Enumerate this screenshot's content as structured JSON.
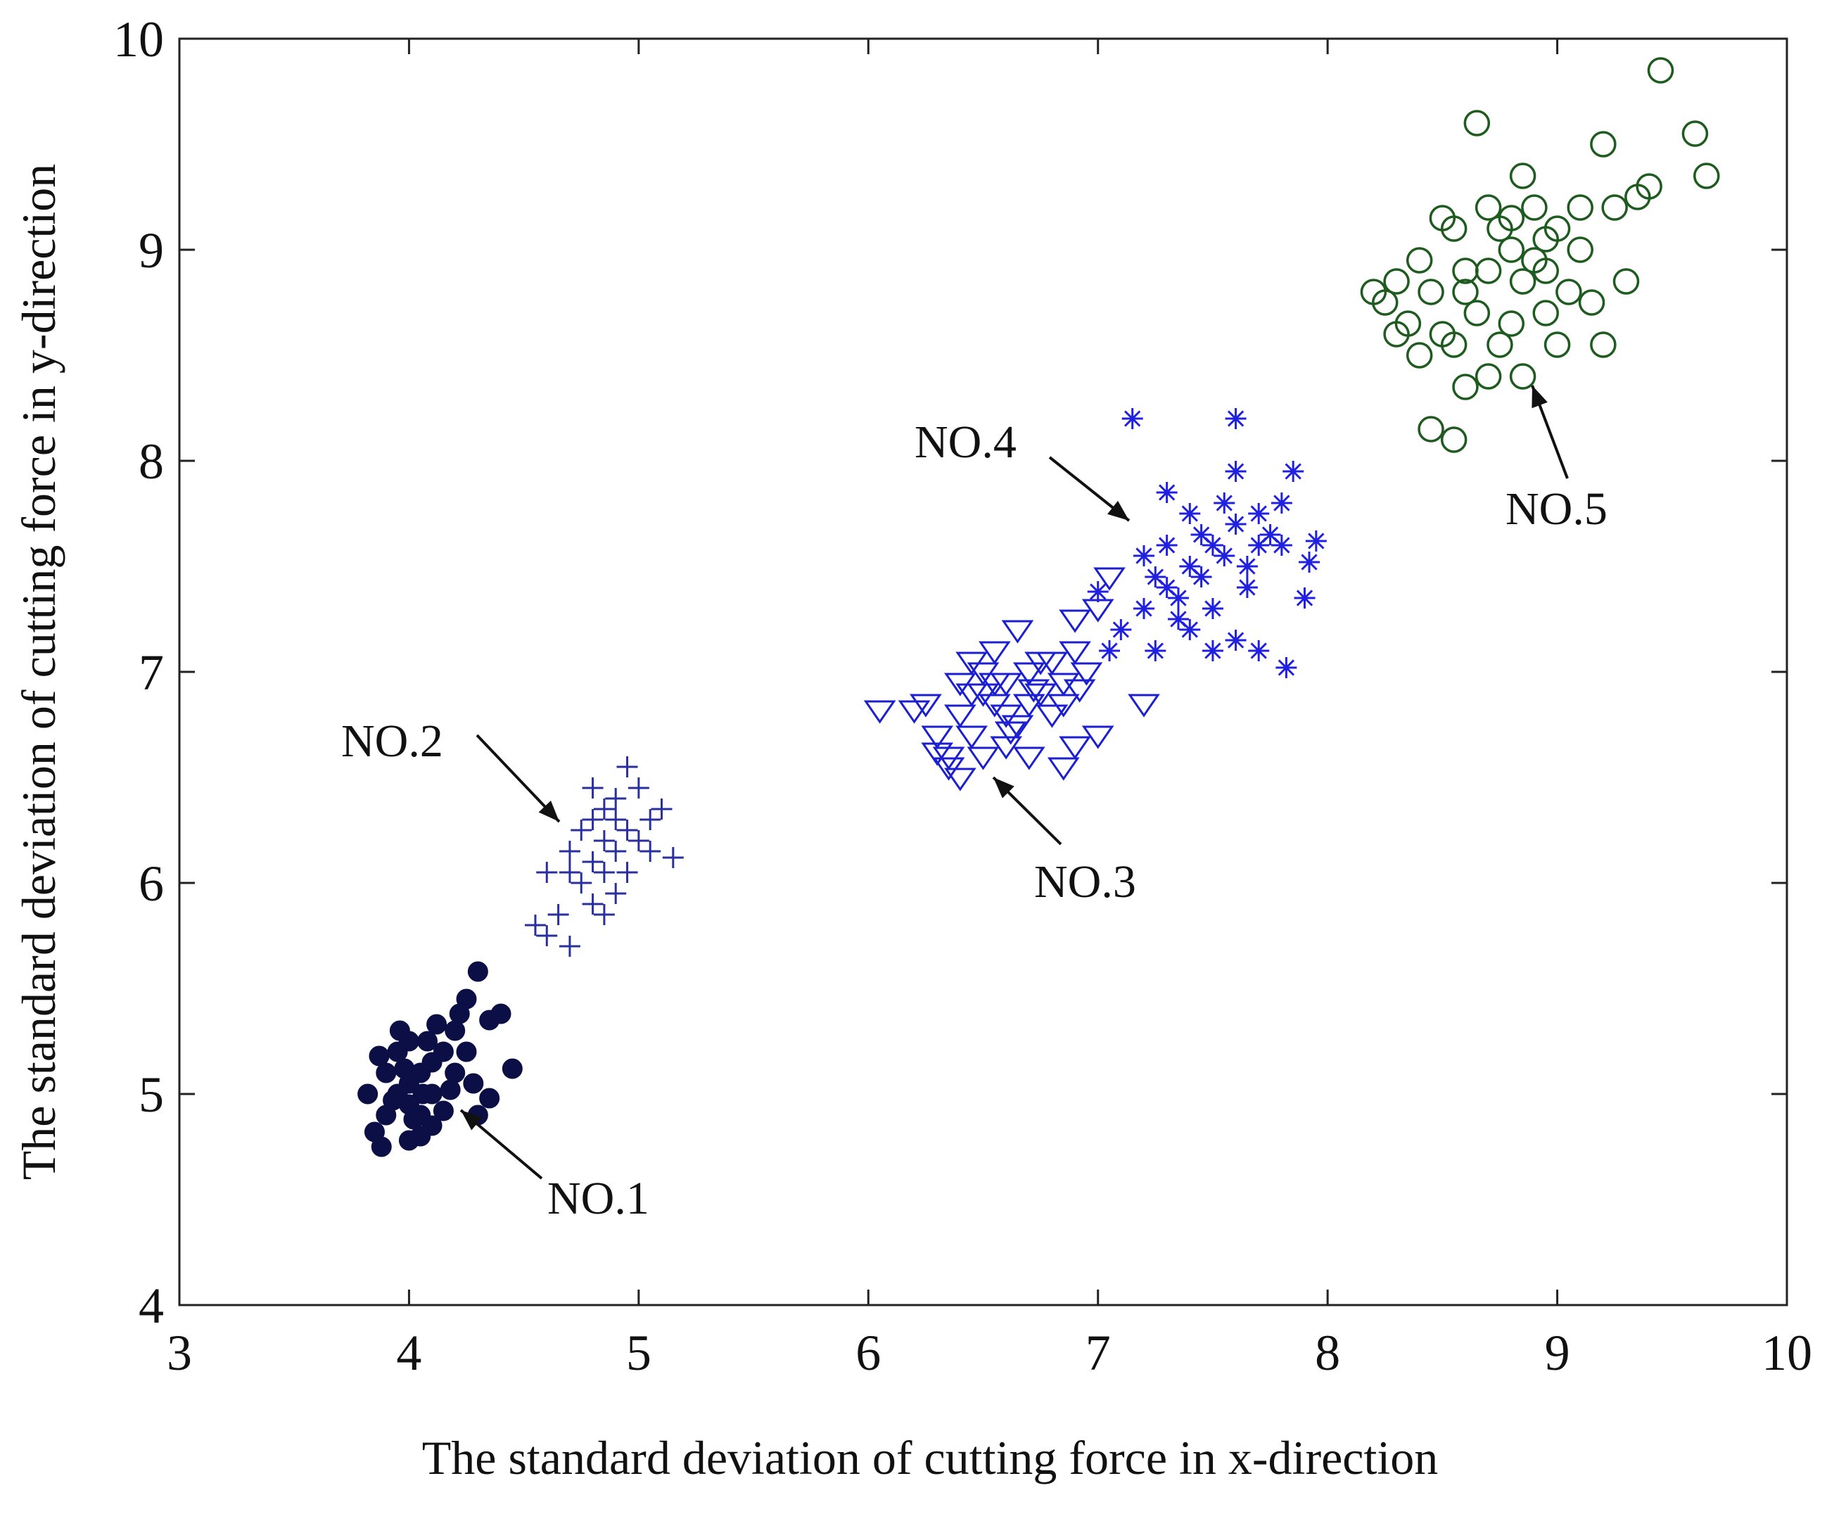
{
  "chart_data": {
    "type": "scatter",
    "title": "",
    "xlabel": "The standard deviation of cutting force in x-direction",
    "ylabel": "The standard deviation of cutting force in y-direction",
    "xlim": [
      3,
      10
    ],
    "ylim": [
      4,
      10
    ],
    "xticks": [
      "3",
      "4",
      "5",
      "6",
      "7",
      "8",
      "9",
      "10"
    ],
    "yticks": [
      "4",
      "5",
      "6",
      "7",
      "8",
      "9",
      "10"
    ],
    "grid": false,
    "legend": "none",
    "series": [
      {
        "name": "NO.1",
        "marker": "filled-circle",
        "color": "#0b0f45",
        "points": [
          [
            4.0,
            5.05
          ],
          [
            4.05,
            5.1
          ],
          [
            3.95,
            5.0
          ],
          [
            4.1,
            5.15
          ],
          [
            4.0,
            4.95
          ],
          [
            3.9,
            5.1
          ],
          [
            4.15,
            5.2
          ],
          [
            4.05,
            4.9
          ],
          [
            3.95,
            5.2
          ],
          [
            4.1,
            5.0
          ],
          [
            4.2,
            5.3
          ],
          [
            4.0,
            5.25
          ],
          [
            3.9,
            4.9
          ],
          [
            4.2,
            5.1
          ],
          [
            4.25,
            5.45
          ],
          [
            4.3,
            5.58
          ],
          [
            4.35,
            5.35
          ],
          [
            4.4,
            5.38
          ],
          [
            4.45,
            5.12
          ],
          [
            4.35,
            4.98
          ],
          [
            4.3,
            4.9
          ],
          [
            4.25,
            5.2
          ],
          [
            3.85,
            4.82
          ],
          [
            3.88,
            4.75
          ],
          [
            4.0,
            4.78
          ],
          [
            4.1,
            4.85
          ],
          [
            3.82,
            5.0
          ],
          [
            3.87,
            5.18
          ],
          [
            4.12,
            5.33
          ],
          [
            4.18,
            5.02
          ],
          [
            4.05,
            4.8
          ],
          [
            3.98,
            5.12
          ],
          [
            4.08,
            5.25
          ],
          [
            4.02,
            4.88
          ],
          [
            3.93,
            4.97
          ],
          [
            4.22,
            5.38
          ],
          [
            4.15,
            4.92
          ],
          [
            4.28,
            5.05
          ],
          [
            3.96,
            5.3
          ],
          [
            4.06,
            5.0
          ]
        ]
      },
      {
        "name": "NO.2",
        "marker": "plus",
        "color": "#2a2f9e",
        "points": [
          [
            4.85,
            6.2
          ],
          [
            4.9,
            6.3
          ],
          [
            4.8,
            6.1
          ],
          [
            4.95,
            6.25
          ],
          [
            4.75,
            6.0
          ],
          [
            4.85,
            6.35
          ],
          [
            4.9,
            6.4
          ],
          [
            5.0,
            6.2
          ],
          [
            4.7,
            6.15
          ],
          [
            4.8,
            5.9
          ],
          [
            4.9,
            5.95
          ],
          [
            5.05,
            6.15
          ],
          [
            4.95,
            6.55
          ],
          [
            4.65,
            5.85
          ],
          [
            4.6,
            5.75
          ],
          [
            4.55,
            5.8
          ],
          [
            4.7,
            5.7
          ],
          [
            5.15,
            6.12
          ],
          [
            5.0,
            6.45
          ],
          [
            4.85,
            5.85
          ],
          [
            4.8,
            6.3
          ],
          [
            4.75,
            6.25
          ],
          [
            4.95,
            6.05
          ],
          [
            5.05,
            6.3
          ],
          [
            4.7,
            6.05
          ],
          [
            4.6,
            6.05
          ],
          [
            4.9,
            6.15
          ],
          [
            4.85,
            6.05
          ],
          [
            5.1,
            6.35
          ],
          [
            4.8,
            6.45
          ]
        ]
      },
      {
        "name": "NO.3",
        "marker": "triangle-down",
        "color": "#1b1fd0",
        "points": [
          [
            6.5,
            6.9
          ],
          [
            6.6,
            6.95
          ],
          [
            6.7,
            7.0
          ],
          [
            6.4,
            6.8
          ],
          [
            6.55,
            6.85
          ],
          [
            6.65,
            6.75
          ],
          [
            6.45,
            6.7
          ],
          [
            6.75,
            6.9
          ],
          [
            6.8,
            7.05
          ],
          [
            6.85,
            6.95
          ],
          [
            6.9,
            7.1
          ],
          [
            6.95,
            7.0
          ],
          [
            6.3,
            6.7
          ],
          [
            6.35,
            6.55
          ],
          [
            6.4,
            6.5
          ],
          [
            6.5,
            6.6
          ],
          [
            6.6,
            6.65
          ],
          [
            6.05,
            6.82
          ],
          [
            6.2,
            6.82
          ],
          [
            6.25,
            6.85
          ],
          [
            6.7,
            6.6
          ],
          [
            6.85,
            6.55
          ],
          [
            7.0,
            6.7
          ],
          [
            7.2,
            6.85
          ],
          [
            6.9,
            6.65
          ],
          [
            7.0,
            7.3
          ],
          [
            6.9,
            7.25
          ],
          [
            6.55,
            7.1
          ],
          [
            6.65,
            7.2
          ],
          [
            6.45,
            7.05
          ],
          [
            6.6,
            6.8
          ],
          [
            6.7,
            6.85
          ],
          [
            6.8,
            6.8
          ],
          [
            6.35,
            6.6
          ],
          [
            6.75,
            7.05
          ],
          [
            6.55,
            6.95
          ],
          [
            6.45,
            6.9
          ],
          [
            6.85,
            6.85
          ],
          [
            7.05,
            7.45
          ],
          [
            6.5,
            7.0
          ],
          [
            6.4,
            6.95
          ],
          [
            6.62,
            6.72
          ],
          [
            6.72,
            6.92
          ],
          [
            6.92,
            6.92
          ],
          [
            6.3,
            6.62
          ]
        ]
      },
      {
        "name": "NO.4",
        "marker": "asterisk",
        "color": "#2020e0",
        "points": [
          [
            7.5,
            7.6
          ],
          [
            7.4,
            7.5
          ],
          [
            7.6,
            7.7
          ],
          [
            7.3,
            7.4
          ],
          [
            7.55,
            7.55
          ],
          [
            7.7,
            7.6
          ],
          [
            7.2,
            7.3
          ],
          [
            7.35,
            7.25
          ],
          [
            7.45,
            7.45
          ],
          [
            7.65,
            7.4
          ],
          [
            7.8,
            7.6
          ],
          [
            7.15,
            8.2
          ],
          [
            7.6,
            8.2
          ],
          [
            7.6,
            7.95
          ],
          [
            7.85,
            7.95
          ],
          [
            7.3,
            7.85
          ],
          [
            7.0,
            7.38
          ],
          [
            7.1,
            7.2
          ],
          [
            7.05,
            7.1
          ],
          [
            7.25,
            7.1
          ],
          [
            7.5,
            7.1
          ],
          [
            7.6,
            7.15
          ],
          [
            7.7,
            7.1
          ],
          [
            7.82,
            7.02
          ],
          [
            7.9,
            7.35
          ],
          [
            7.95,
            7.62
          ],
          [
            7.92,
            7.52
          ],
          [
            7.2,
            7.55
          ],
          [
            7.4,
            7.75
          ],
          [
            7.55,
            7.8
          ],
          [
            7.7,
            7.75
          ],
          [
            7.8,
            7.8
          ],
          [
            7.3,
            7.6
          ],
          [
            7.45,
            7.65
          ],
          [
            7.65,
            7.5
          ],
          [
            7.35,
            7.35
          ],
          [
            7.5,
            7.3
          ],
          [
            7.25,
            7.45
          ],
          [
            7.4,
            7.2
          ],
          [
            7.75,
            7.65
          ]
        ]
      },
      {
        "name": "NO.5",
        "marker": "open-circle",
        "color": "#1e5b1e",
        "points": [
          [
            8.7,
            8.9
          ],
          [
            8.8,
            9.0
          ],
          [
            8.6,
            8.8
          ],
          [
            8.9,
            8.95
          ],
          [
            8.75,
            9.1
          ],
          [
            8.65,
            8.7
          ],
          [
            8.85,
            8.85
          ],
          [
            8.95,
            9.05
          ],
          [
            8.5,
            8.6
          ],
          [
            9.0,
            9.1
          ],
          [
            9.1,
            9.2
          ],
          [
            8.4,
            8.5
          ],
          [
            8.3,
            8.6
          ],
          [
            8.25,
            8.75
          ],
          [
            8.2,
            8.8
          ],
          [
            8.45,
            8.15
          ],
          [
            8.55,
            8.1
          ],
          [
            8.6,
            8.35
          ],
          [
            8.7,
            8.4
          ],
          [
            8.85,
            8.4
          ],
          [
            9.0,
            8.55
          ],
          [
            9.2,
            8.55
          ],
          [
            9.3,
            8.85
          ],
          [
            9.25,
            9.2
          ],
          [
            9.4,
            9.3
          ],
          [
            9.45,
            9.85
          ],
          [
            9.6,
            9.55
          ],
          [
            9.65,
            9.35
          ],
          [
            9.2,
            9.5
          ],
          [
            8.85,
            9.35
          ],
          [
            8.65,
            9.6
          ],
          [
            9.1,
            9.0
          ],
          [
            8.55,
            9.1
          ],
          [
            8.5,
            9.15
          ],
          [
            8.6,
            8.9
          ],
          [
            8.8,
            8.65
          ],
          [
            8.95,
            8.7
          ],
          [
            9.15,
            8.75
          ],
          [
            8.4,
            8.95
          ],
          [
            8.7,
            9.2
          ],
          [
            8.55,
            8.55
          ],
          [
            8.35,
            8.65
          ],
          [
            9.05,
            8.8
          ],
          [
            8.9,
            9.2
          ],
          [
            8.75,
            8.55
          ],
          [
            8.45,
            8.8
          ],
          [
            8.95,
            8.9
          ],
          [
            9.35,
            9.25
          ],
          [
            8.3,
            8.85
          ],
          [
            8.8,
            9.15
          ]
        ]
      }
    ],
    "annotations": [
      {
        "text": "NO.1",
        "target": "NO.1"
      },
      {
        "text": "NO.2",
        "target": "NO.2"
      },
      {
        "text": "NO.3",
        "target": "NO.3"
      },
      {
        "text": "NO.4",
        "target": "NO.4"
      },
      {
        "text": "NO.5",
        "target": "NO.5"
      }
    ]
  }
}
